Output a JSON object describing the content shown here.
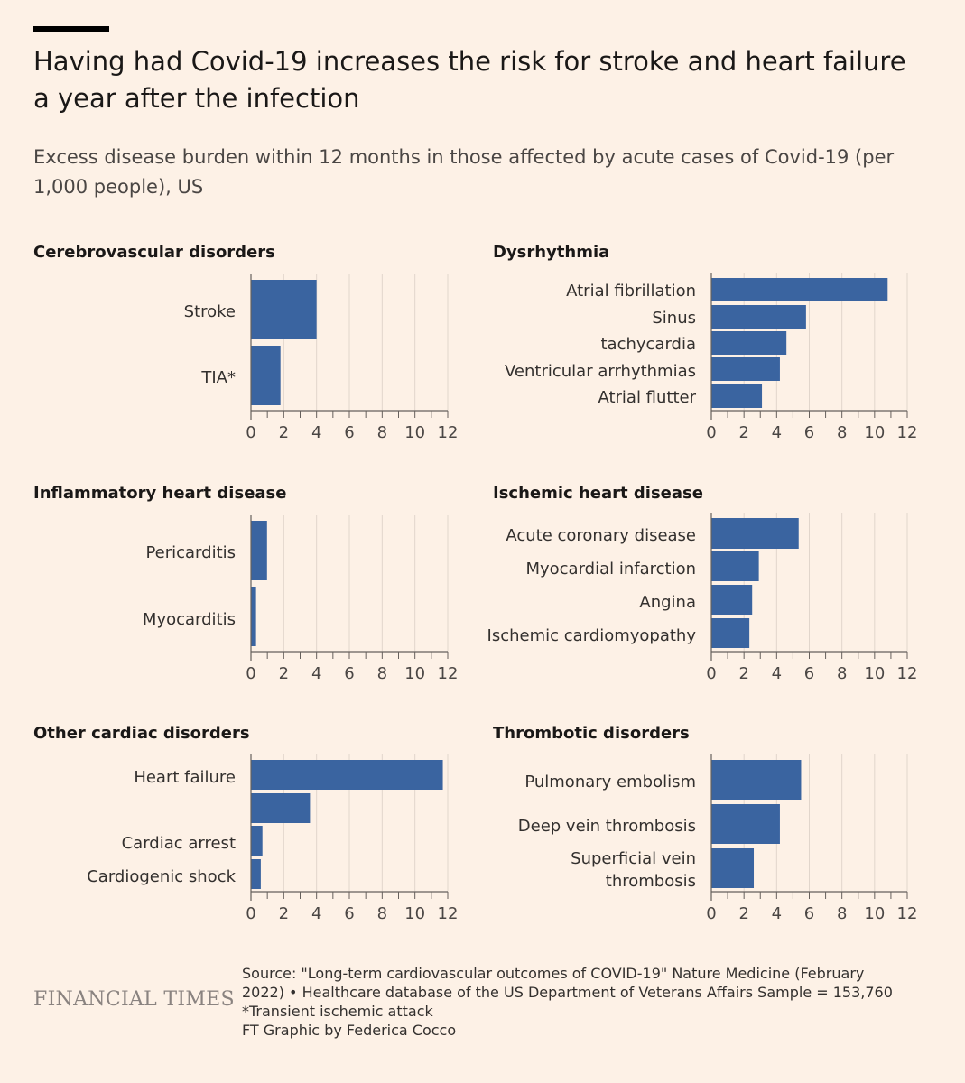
{
  "title": "Having had Covid-19 increases the risk for stroke and heart failure a year after the infection",
  "subtitle": "Excess disease burden within 12 months in those affected by acute cases of Covid-19 (per 1,000 people), US",
  "footer": {
    "logo": "FINANCIAL TIMES",
    "source": "Source: \"Long-term cardiovascular outcomes of COVID-19\" Nature Medicine (February 2022) • Healthcare database of the US Department of Veterans Affairs Sample = 153,760 *Transient ischemic attack",
    "credit": "FT Graphic by Federica Cocco"
  },
  "colors": {
    "bar": "#3a64a0",
    "background": "#fdf1e6",
    "grid": "#e1d6cc",
    "axis": "#66605c"
  },
  "chart_data": [
    {
      "type": "bar",
      "orientation": "horizontal",
      "title": "Cerebrovascular disorders",
      "categories": [
        "Stroke",
        "TIA*"
      ],
      "values": [
        4.0,
        1.8
      ],
      "xlim": [
        0,
        12
      ],
      "xticks": [
        0,
        2,
        4,
        6,
        8,
        10,
        12
      ],
      "grid": true
    },
    {
      "type": "bar",
      "orientation": "horizontal",
      "title": "Dysrhythmia",
      "categories": [
        "Atrial fibrillation",
        "Sinus",
        "tachycardia",
        "Ventricular arrhythmias",
        "Atrial flutter"
      ],
      "values": [
        10.8,
        5.8,
        4.6,
        4.2,
        3.1
      ],
      "xlim": [
        0,
        12
      ],
      "xticks": [
        0,
        2,
        4,
        6,
        8,
        10,
        12
      ],
      "grid": true
    },
    {
      "type": "bar",
      "orientation": "horizontal",
      "title": "Inflammatory heart disease",
      "categories": [
        "Pericarditis",
        "Myocarditis"
      ],
      "values": [
        0.98,
        0.31
      ],
      "xlim": [
        0,
        12
      ],
      "xticks": [
        0,
        2,
        4,
        6,
        8,
        10,
        12
      ],
      "grid": true
    },
    {
      "type": "bar",
      "orientation": "horizontal",
      "title": "Ischemic heart disease",
      "categories": [
        "Acute coronary disease",
        "Myocardial infarction",
        "Angina",
        "Ischemic cardiomyopathy"
      ],
      "values": [
        5.35,
        2.91,
        2.5,
        2.33
      ],
      "xlim": [
        0,
        12
      ],
      "xticks": [
        0,
        2,
        4,
        6,
        8,
        10,
        12
      ],
      "grid": true
    },
    {
      "type": "bar",
      "orientation": "horizontal",
      "title": "Other cardiac disorders",
      "categories": [
        "Heart failure",
        "",
        "Cardiac arrest",
        "Cardiogenic shock"
      ],
      "values": [
        11.7,
        3.6,
        0.7,
        0.6
      ],
      "xlim": [
        0,
        12
      ],
      "xticks": [
        0,
        2,
        4,
        6,
        8,
        10,
        12
      ],
      "grid": true
    },
    {
      "type": "bar",
      "orientation": "horizontal",
      "title": "Thrombotic disorders",
      "categories": [
        "Pulmonary embolism",
        "Deep vein thrombosis",
        "Superficial vein thrombosis"
      ],
      "values": [
        5.5,
        4.2,
        2.6
      ],
      "xlim": [
        0,
        12
      ],
      "xticks": [
        0,
        2,
        4,
        6,
        8,
        10,
        12
      ],
      "grid": true
    }
  ]
}
